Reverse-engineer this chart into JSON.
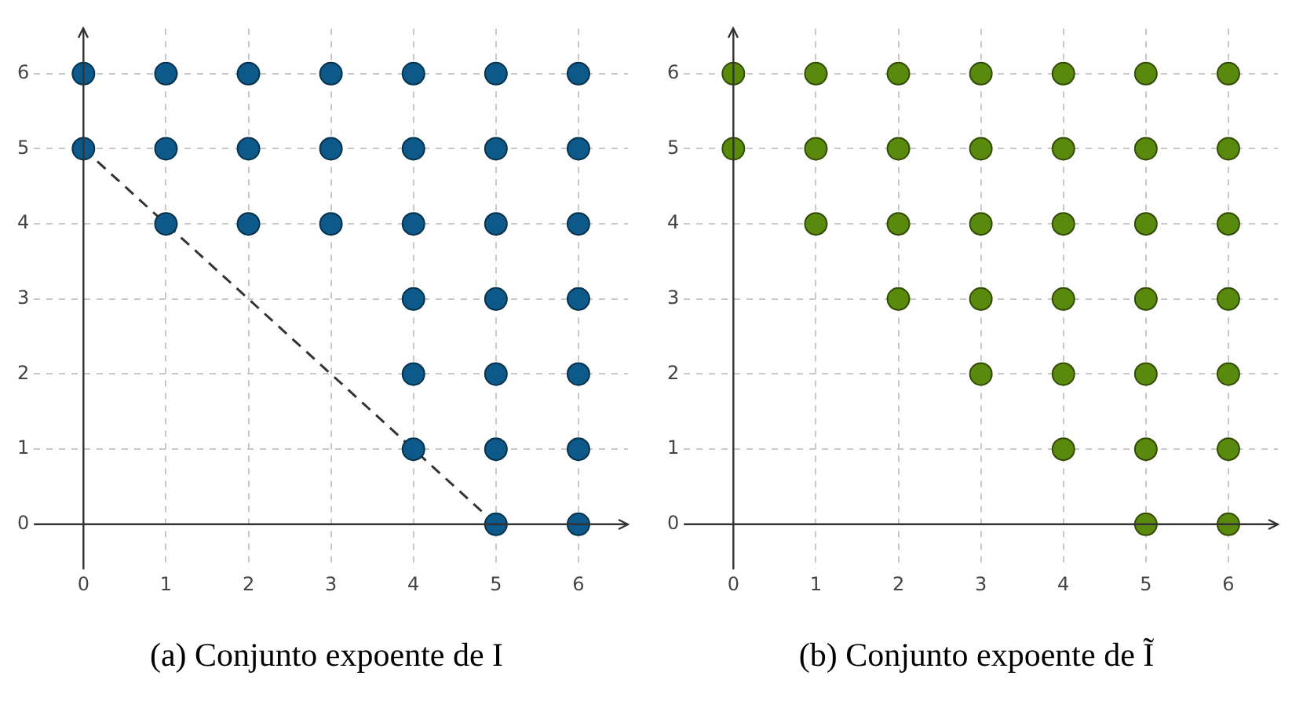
{
  "chart_data": [
    {
      "type": "scatter",
      "title": "(a) Conjunto expoente de I",
      "xlim": [
        -0.6,
        6.6
      ],
      "ylim": [
        -0.6,
        6.6
      ],
      "xticks": [
        0,
        1,
        2,
        3,
        4,
        5,
        6
      ],
      "yticks": [
        0,
        1,
        2,
        3,
        4,
        5,
        6
      ],
      "grid": true,
      "marker": "circle",
      "series": [
        {
          "color": "#0d5a8a",
          "x": [
            0,
            1,
            2,
            3,
            4,
            5,
            6,
            0,
            1,
            2,
            3,
            4,
            5,
            6,
            1,
            2,
            3,
            4,
            5,
            6,
            4,
            5,
            6,
            4,
            5,
            6,
            4,
            5,
            6,
            5,
            6
          ],
          "values": [
            6,
            6,
            6,
            6,
            6,
            6,
            6,
            5,
            5,
            5,
            5,
            5,
            5,
            5,
            4,
            4,
            4,
            4,
            4,
            4,
            3,
            3,
            3,
            2,
            2,
            2,
            1,
            1,
            1,
            0,
            0
          ]
        },
        {
          "type": "line",
          "color": "#333333",
          "line_style": "dashed",
          "marker": "none",
          "x": [
            0,
            5
          ],
          "values": [
            5,
            0
          ]
        }
      ]
    },
    {
      "type": "scatter",
      "title": "(b) Conjunto expoente de Ĩ",
      "xlim": [
        -0.6,
        6.6
      ],
      "ylim": [
        -0.6,
        6.6
      ],
      "xticks": [
        0,
        1,
        2,
        3,
        4,
        5,
        6
      ],
      "yticks": [
        0,
        1,
        2,
        3,
        4,
        5,
        6
      ],
      "grid": true,
      "marker": "circle",
      "series": [
        {
          "color": "#5a8a0d",
          "x": [
            0,
            1,
            2,
            3,
            4,
            5,
            6,
            0,
            1,
            2,
            3,
            4,
            5,
            6,
            1,
            2,
            3,
            4,
            5,
            6,
            2,
            3,
            4,
            5,
            6,
            3,
            4,
            5,
            6,
            4,
            5,
            6,
            5,
            6
          ],
          "values": [
            6,
            6,
            6,
            6,
            6,
            6,
            6,
            5,
            5,
            5,
            5,
            5,
            5,
            5,
            4,
            4,
            4,
            4,
            4,
            4,
            3,
            3,
            3,
            3,
            3,
            2,
            2,
            2,
            2,
            1,
            1,
            1,
            0,
            0
          ]
        }
      ]
    }
  ]
}
